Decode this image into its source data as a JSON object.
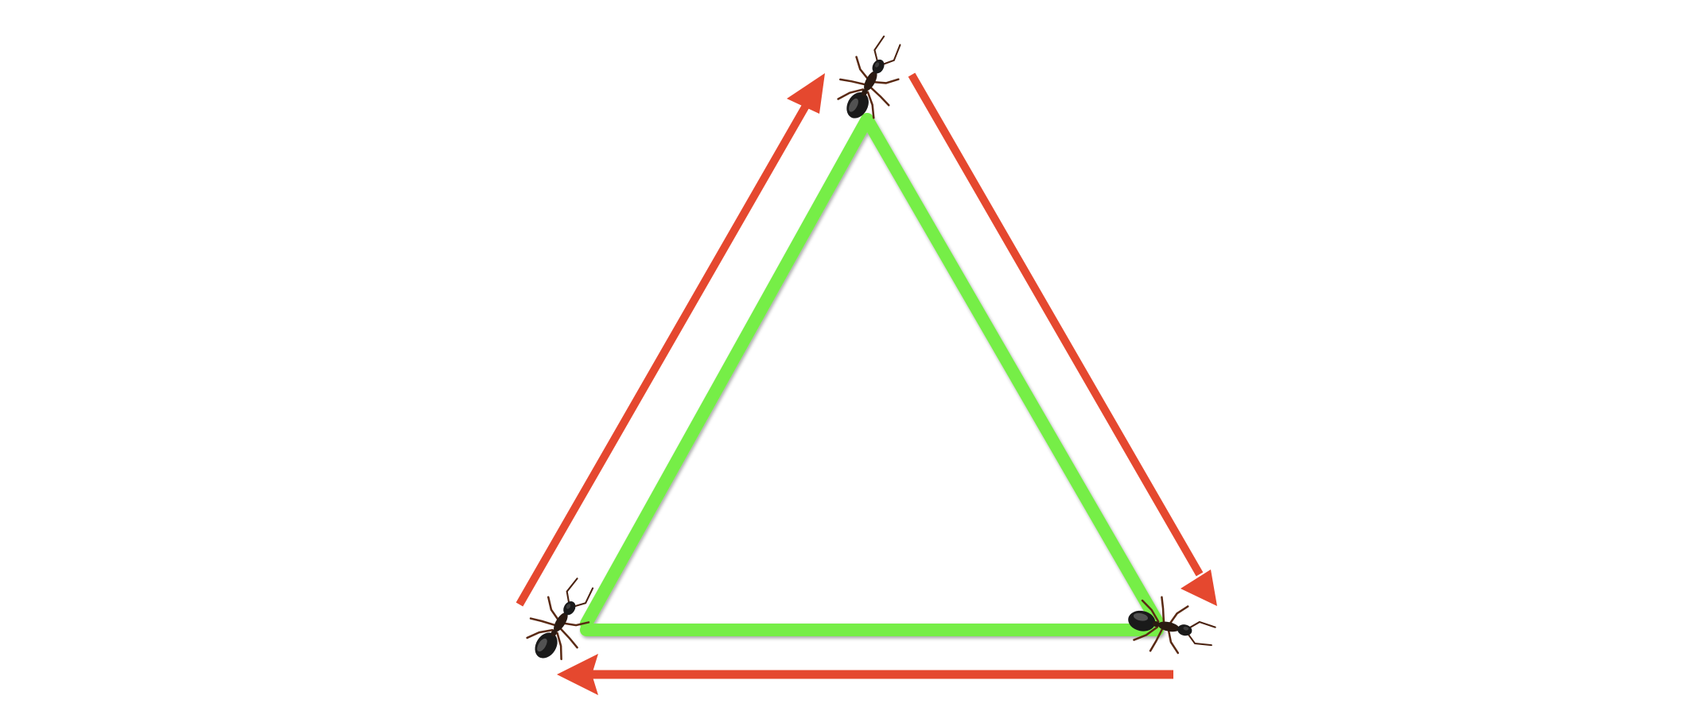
{
  "diagram": {
    "type": "cycle",
    "nodes": [
      {
        "id": "top-vertex",
        "icon": "ant-icon"
      },
      {
        "id": "bottom-right-vertex",
        "icon": "ant-icon"
      },
      {
        "id": "bottom-left-vertex",
        "icon": "ant-icon"
      }
    ],
    "edges": [
      {
        "from": "bottom-left-vertex",
        "to": "top-vertex"
      },
      {
        "from": "top-vertex",
        "to": "bottom-right-vertex"
      },
      {
        "from": "bottom-right-vertex",
        "to": "bottom-left-vertex"
      }
    ],
    "direction": "clockwise",
    "colors": {
      "path": "#76ee46",
      "arrow": "#e5482f",
      "ant_body": "#1a1a1a",
      "ant_legs": "#5a2a14",
      "background": "#ffffff"
    }
  }
}
